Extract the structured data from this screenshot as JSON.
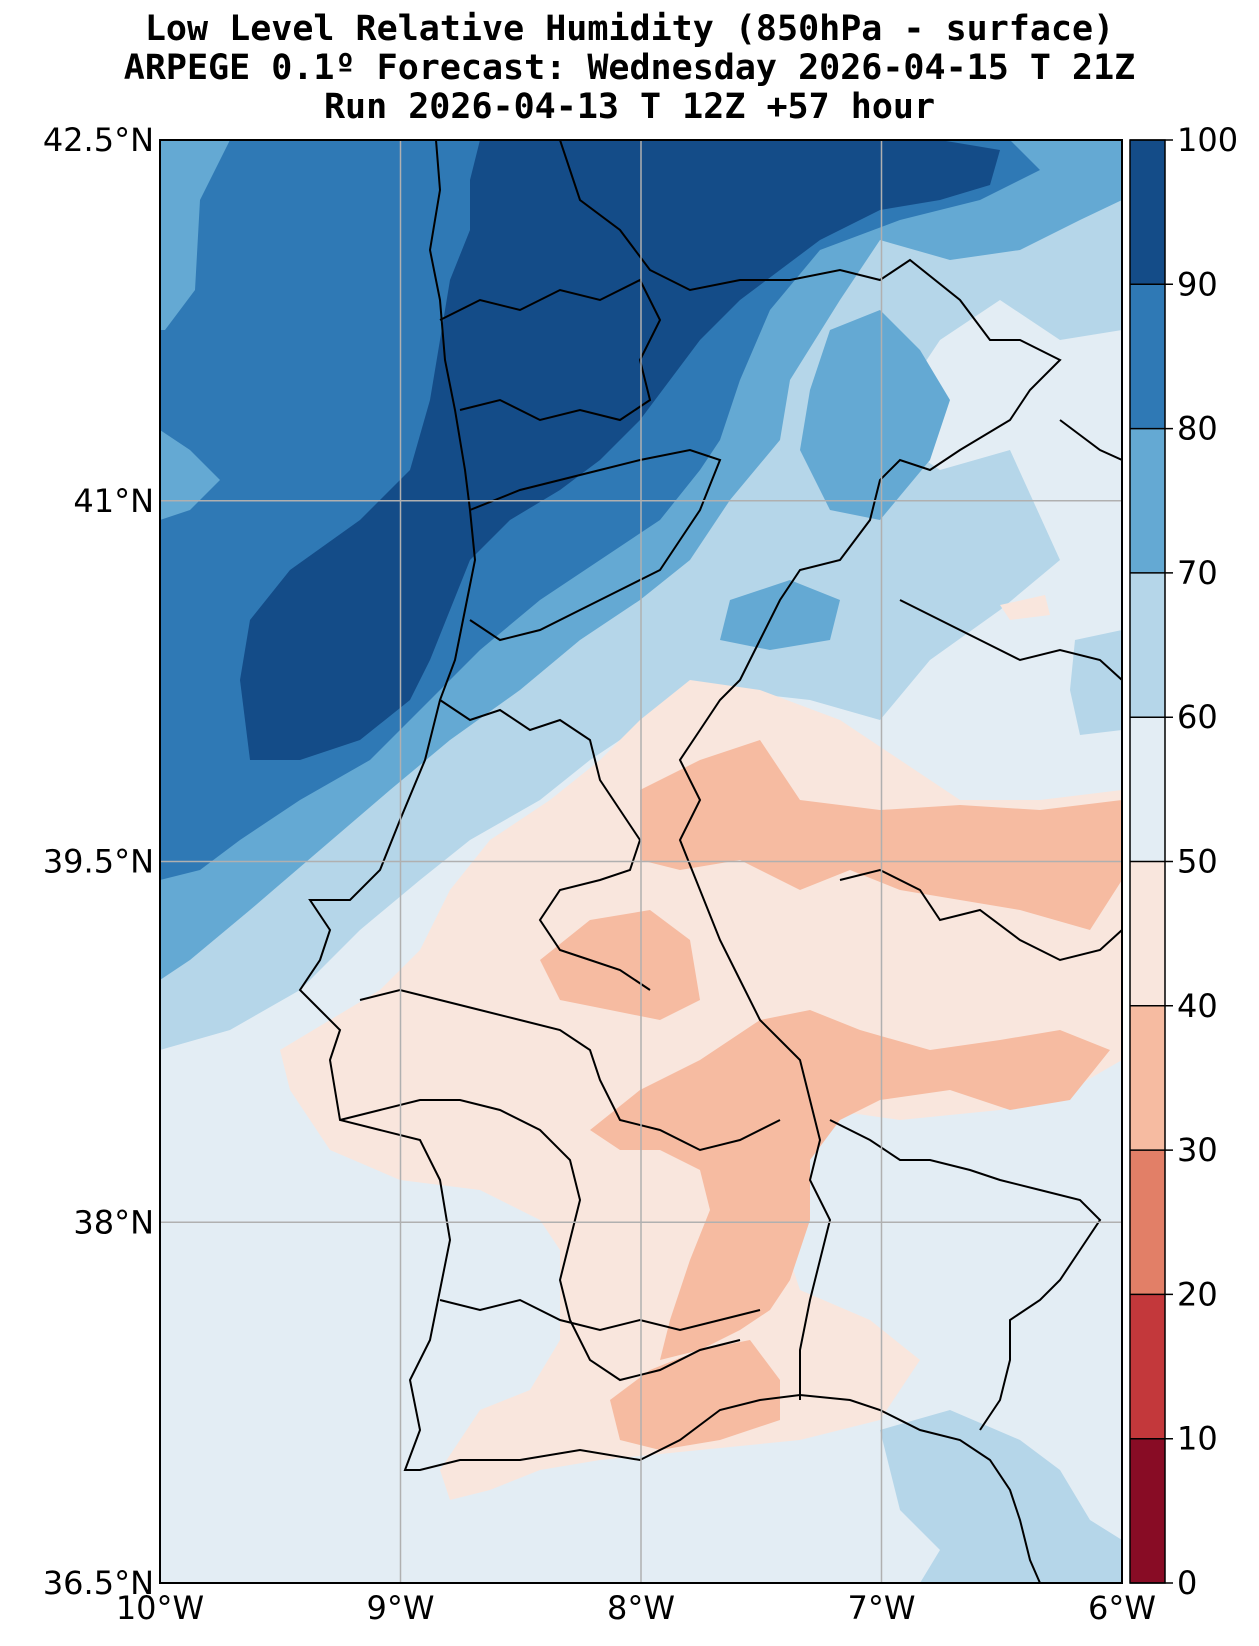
{
  "title": {
    "line1": "Low Level Relative Humidity (850hPa - surface)",
    "line2": "ARPEGE 0.1º Forecast: Wednesday 2026-04-15 T 21Z",
    "line3": "Run 2026-04-13 T 12Z +57 hour"
  },
  "map": {
    "lat_labels": [
      "42.5°N",
      "41°N",
      "39.5°N",
      "38°N",
      "36.5°N"
    ],
    "lon_labels": [
      "10°W",
      "9°W",
      "8°W",
      "7°W",
      "6°W"
    ],
    "lat_values": [
      42.5,
      41,
      39.5,
      38,
      36.5
    ],
    "lon_values": [
      -10,
      -9,
      -8,
      -7,
      -6
    ]
  },
  "colorbar": {
    "ticks": [
      "100",
      "90",
      "80",
      "70",
      "60",
      "50",
      "40",
      "30",
      "20",
      "10",
      "0"
    ],
    "levels": [
      {
        "range": "90-100",
        "color": "#144c88"
      },
      {
        "range": "80-90",
        "color": "#2f79b5"
      },
      {
        "range": "70-80",
        "color": "#64a9d3"
      },
      {
        "range": "60-70",
        "color": "#b5d6e9"
      },
      {
        "range": "50-60",
        "color": "#e3edf4"
      },
      {
        "range": "40-50",
        "color": "#f9e6dd"
      },
      {
        "range": "30-40",
        "color": "#f6bba1"
      },
      {
        "range": "20-30",
        "color": "#e27f67"
      },
      {
        "range": "10-20",
        "color": "#c3383b"
      },
      {
        "range": "0-10",
        "color": "#880c25"
      }
    ]
  },
  "colors": {
    "c90": "#144c88",
    "c80": "#2f79b5",
    "c70": "#64a9d3",
    "c60": "#b5d6e9",
    "c50": "#e3edf4",
    "c40": "#f9e6dd",
    "c30": "#f6bba1"
  }
}
